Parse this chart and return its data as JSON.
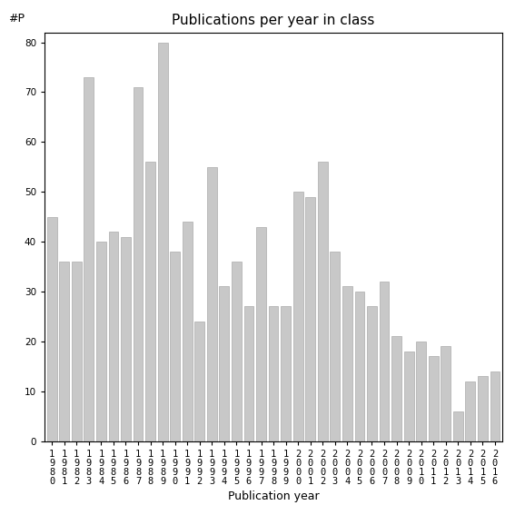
{
  "years": [
    "1980",
    "1981",
    "1982",
    "1983",
    "1984",
    "1985",
    "1986",
    "1987",
    "1988",
    "1989",
    "1990",
    "1991",
    "1992",
    "1993",
    "1994",
    "1995",
    "1996",
    "1997",
    "1998",
    "1999",
    "2000",
    "2001",
    "2002",
    "2003",
    "2004",
    "2005",
    "2006",
    "2007",
    "2008",
    "2009",
    "2010",
    "2011",
    "2012",
    "2013",
    "2014",
    "2015",
    "2016"
  ],
  "values": [
    45,
    36,
    36,
    73,
    40,
    42,
    41,
    71,
    56,
    80,
    38,
    44,
    24,
    55,
    31,
    36,
    27,
    43,
    27,
    27,
    50,
    49,
    56,
    38,
    31,
    30,
    27,
    32,
    21,
    18,
    20,
    17,
    19,
    6,
    12,
    13,
    14
  ],
  "bar_color": "#c8c8c8",
  "bar_edgecolor": "#aaaaaa",
  "title": "Publications per year in class",
  "xlabel": "Publication year",
  "ylabel": "#P",
  "ylim": [
    0,
    82
  ],
  "yticks": [
    0,
    10,
    20,
    30,
    40,
    50,
    60,
    70,
    80
  ],
  "background_color": "#ffffff",
  "title_fontsize": 11,
  "label_fontsize": 9,
  "tick_fontsize": 7.5
}
